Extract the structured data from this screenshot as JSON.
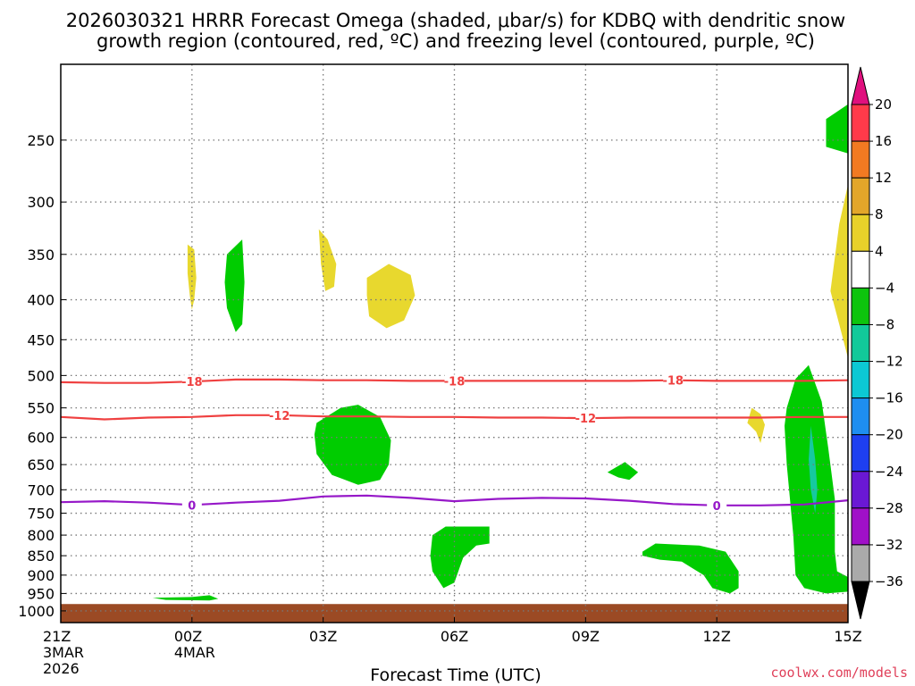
{
  "chart_data": {
    "type": "heatmap",
    "title_line1": "2026030321 HRRR Forecast Omega (shaded, μbar/s) for KDBQ with dendritic snow",
    "title_line2": "growth region (contoured, red, ºC) and freezing level (contoured, purple, ºC)",
    "xlabel": "Forecast Time (UTC)",
    "credit": "coolwx.com/models",
    "y_axis": {
      "scale": "log-pressure",
      "range_hpa": [
        1035,
        200
      ],
      "ticks": [
        250,
        300,
        350,
        400,
        450,
        500,
        550,
        600,
        650,
        700,
        750,
        800,
        850,
        900,
        950,
        1000
      ]
    },
    "x_axis": {
      "range_hours": [
        0,
        18
      ],
      "ticks": [
        {
          "hour": 0,
          "label": "21Z",
          "sub1": "3MAR",
          "sub2": "2026"
        },
        {
          "hour": 3,
          "label": "00Z",
          "sub1": "4MAR",
          "sub2": ""
        },
        {
          "hour": 6,
          "label": "03Z",
          "sub1": "",
          "sub2": ""
        },
        {
          "hour": 9,
          "label": "06Z",
          "sub1": "",
          "sub2": ""
        },
        {
          "hour": 12,
          "label": "09Z",
          "sub1": "",
          "sub2": ""
        },
        {
          "hour": 15,
          "label": "12Z",
          "sub1": "",
          "sub2": ""
        },
        {
          "hour": 18,
          "label": "15Z",
          "sub1": "",
          "sub2": ""
        }
      ]
    },
    "colorbar": {
      "levels": [
        {
          "value": 20,
          "label": "20",
          "color": "#ff3a4a"
        },
        {
          "value": 16,
          "label": "16",
          "color": "#f27a22"
        },
        {
          "value": 12,
          "label": "12",
          "color": "#e3a62a"
        },
        {
          "value": 8,
          "label": "8",
          "color": "#e8d12a"
        },
        {
          "value": 4,
          "label": "4",
          "color": "#ffffff"
        },
        {
          "value": -4,
          "label": "−4",
          "color": "#0dc40d"
        },
        {
          "value": -8,
          "label": "−8",
          "color": "#12c99a"
        },
        {
          "value": -12,
          "label": "−12",
          "color": "#0cc8d4"
        },
        {
          "value": -16,
          "label": "−16",
          "color": "#1e8ef0"
        },
        {
          "value": -20,
          "label": "−20",
          "color": "#1e3ff0"
        },
        {
          "value": -24,
          "label": "−24",
          "color": "#6a18d4"
        },
        {
          "value": -28,
          "label": "−28",
          "color": "#a010c8"
        },
        {
          "value": -32,
          "label": "−32",
          "color": "#aaaaaa"
        },
        {
          "value": -36,
          "label": "−36",
          "color": "#000000"
        }
      ],
      "top_arrow_color": "#e0107e"
    },
    "colors": {
      "yellow": "#e8d82e",
      "green": "#00cc00",
      "teal": "#16c9a0",
      "ground": "#9b4a24",
      "dgz": "#ef4040",
      "freezing": "#9618c8"
    },
    "ground_surface_hpa": 980,
    "dgz_contours": [
      {
        "label": "-18",
        "label_hours": [
          3.0,
          9.0,
          14.0
        ],
        "points": [
          [
            0,
            510
          ],
          [
            1,
            511
          ],
          [
            2,
            511
          ],
          [
            3,
            509
          ],
          [
            4,
            506
          ],
          [
            5,
            506
          ],
          [
            6,
            507
          ],
          [
            7,
            507
          ],
          [
            8,
            508
          ],
          [
            9,
            508
          ],
          [
            10,
            508
          ],
          [
            11,
            508
          ],
          [
            12,
            508
          ],
          [
            13,
            508
          ],
          [
            14,
            507
          ],
          [
            15,
            508
          ],
          [
            16,
            508
          ],
          [
            17,
            508
          ],
          [
            18,
            507
          ]
        ]
      },
      {
        "label": "-12",
        "label_hours": [
          5.0,
          12.0
        ],
        "points": [
          [
            0,
            565
          ],
          [
            1,
            569
          ],
          [
            2,
            566
          ],
          [
            3,
            565
          ],
          [
            4,
            562
          ],
          [
            5,
            562
          ],
          [
            6,
            564
          ],
          [
            7,
            564
          ],
          [
            8,
            565
          ],
          [
            9,
            565
          ],
          [
            10,
            566
          ],
          [
            11,
            566
          ],
          [
            12,
            567
          ],
          [
            13,
            566
          ],
          [
            14,
            566
          ],
          [
            15,
            566
          ],
          [
            16,
            566
          ],
          [
            17,
            565
          ],
          [
            18,
            565
          ]
        ]
      }
    ],
    "freezing_contours": [
      {
        "label": "0",
        "label_hours": [
          3.0,
          15.0
        ],
        "points": [
          [
            0,
            726
          ],
          [
            1,
            724
          ],
          [
            2,
            727
          ],
          [
            3,
            732
          ],
          [
            4,
            727
          ],
          [
            5,
            723
          ],
          [
            6,
            714
          ],
          [
            7,
            712
          ],
          [
            8,
            717
          ],
          [
            9,
            724
          ],
          [
            10,
            719
          ],
          [
            11,
            717
          ],
          [
            12,
            718
          ],
          [
            13,
            723
          ],
          [
            14,
            730
          ],
          [
            15,
            733
          ],
          [
            16,
            733
          ],
          [
            17,
            731
          ],
          [
            18,
            722
          ]
        ]
      }
    ],
    "omega_regions": [
      {
        "level": 4,
        "points": [
          [
            2.9,
            340
          ],
          [
            3.05,
            345
          ],
          [
            3.1,
            375
          ],
          [
            3.05,
            400
          ],
          [
            3.0,
            412
          ],
          [
            2.95,
            395
          ],
          [
            2.9,
            370
          ]
        ]
      },
      {
        "level": 4,
        "points": [
          [
            5.9,
            325
          ],
          [
            6.1,
            335
          ],
          [
            6.3,
            360
          ],
          [
            6.25,
            385
          ],
          [
            6.05,
            390
          ],
          [
            5.95,
            360
          ]
        ]
      },
      {
        "level": 4,
        "points": [
          [
            7.0,
            375
          ],
          [
            7.5,
            360
          ],
          [
            8.0,
            372
          ],
          [
            8.1,
            395
          ],
          [
            7.85,
            425
          ],
          [
            7.45,
            435
          ],
          [
            7.05,
            420
          ],
          [
            7.0,
            395
          ]
        ]
      },
      {
        "level": 4,
        "points": [
          [
            15.8,
            550
          ],
          [
            16.0,
            560
          ],
          [
            16.1,
            578
          ],
          [
            16.0,
            610
          ],
          [
            15.9,
            590
          ],
          [
            15.7,
            575
          ]
        ]
      },
      {
        "level": 4,
        "points": [
          [
            17.6,
            390
          ],
          [
            17.8,
            320
          ],
          [
            18.0,
            285
          ],
          [
            18.0,
            475
          ],
          [
            17.8,
            430
          ]
        ]
      },
      {
        "level": -4,
        "points": [
          [
            3.8,
            350
          ],
          [
            4.15,
            335
          ],
          [
            4.2,
            380
          ],
          [
            4.15,
            430
          ],
          [
            4.0,
            440
          ],
          [
            3.8,
            410
          ],
          [
            3.75,
            380
          ]
        ]
      },
      {
        "level": -4,
        "points": [
          [
            5.85,
            575
          ],
          [
            6.4,
            550
          ],
          [
            6.8,
            545
          ],
          [
            7.3,
            565
          ],
          [
            7.55,
            605
          ],
          [
            7.5,
            650
          ],
          [
            7.3,
            680
          ],
          [
            6.8,
            690
          ],
          [
            6.2,
            670
          ],
          [
            5.85,
            630
          ],
          [
            5.8,
            595
          ]
        ]
      },
      {
        "level": -4,
        "points": [
          [
            8.5,
            800
          ],
          [
            8.8,
            780
          ],
          [
            9.8,
            780
          ],
          [
            9.8,
            820
          ],
          [
            9.5,
            825
          ],
          [
            9.2,
            855
          ],
          [
            9.0,
            920
          ],
          [
            8.75,
            935
          ],
          [
            8.5,
            890
          ],
          [
            8.45,
            850
          ]
        ]
      },
      {
        "level": -4,
        "points": [
          [
            12.5,
            665
          ],
          [
            12.9,
            645
          ],
          [
            13.2,
            665
          ],
          [
            13.0,
            680
          ],
          [
            12.75,
            675
          ]
        ]
      },
      {
        "level": -4,
        "points": [
          [
            13.3,
            840
          ],
          [
            13.6,
            820
          ],
          [
            14.6,
            825
          ],
          [
            15.2,
            840
          ],
          [
            15.5,
            890
          ],
          [
            15.5,
            935
          ],
          [
            15.3,
            950
          ],
          [
            14.9,
            935
          ],
          [
            14.7,
            900
          ],
          [
            14.2,
            865
          ],
          [
            13.7,
            860
          ],
          [
            13.3,
            850
          ]
        ]
      },
      {
        "level": -4,
        "points": [
          [
            16.6,
            550
          ],
          [
            16.8,
            505
          ],
          [
            17.1,
            485
          ],
          [
            17.4,
            540
          ],
          [
            17.55,
            620
          ],
          [
            17.7,
            720
          ],
          [
            17.7,
            840
          ],
          [
            17.75,
            890
          ],
          [
            18.0,
            905
          ],
          [
            18.0,
            945
          ],
          [
            17.5,
            950
          ],
          [
            17.0,
            935
          ],
          [
            16.8,
            900
          ],
          [
            16.75,
            800
          ],
          [
            16.6,
            650
          ],
          [
            16.55,
            580
          ]
        ]
      },
      {
        "level": -4,
        "points": [
          [
            3.0,
            960
          ],
          [
            3.4,
            955
          ],
          [
            3.6,
            965
          ],
          [
            3.4,
            970
          ],
          [
            2.4,
            968
          ],
          [
            2.1,
            962
          ]
        ]
      },
      {
        "level": -4,
        "points": [
          [
            17.5,
            235
          ],
          [
            18.0,
            225
          ],
          [
            18.0,
            260
          ],
          [
            17.5,
            255
          ]
        ]
      },
      {
        "level": -8,
        "points": [
          [
            17.15,
            580
          ],
          [
            17.25,
            640
          ],
          [
            17.3,
            700
          ],
          [
            17.25,
            750
          ],
          [
            17.15,
            700
          ],
          [
            17.1,
            640
          ]
        ]
      }
    ]
  }
}
